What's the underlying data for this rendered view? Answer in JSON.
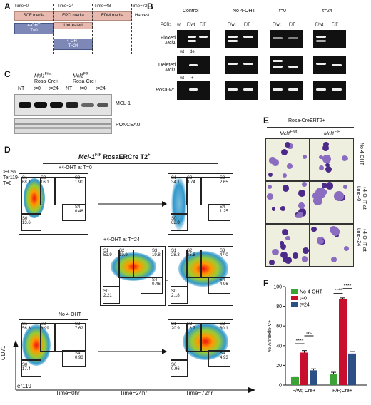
{
  "panels": {
    "a": "A",
    "b": "B",
    "c": "C",
    "d": "D",
    "e": "E",
    "f": "F"
  },
  "timeline": {
    "times": [
      "Time=0",
      "Time=24",
      "Time=48",
      "Time=72"
    ],
    "media": [
      "SCF media",
      "EPO media",
      "EDM media"
    ],
    "harvest": "Harvest",
    "untreated": "Untreated",
    "ohtA": [
      "4-OHT",
      "T=0"
    ],
    "ohtB": [
      "4-OHT",
      "T=24"
    ]
  },
  "gelB": {
    "groups": [
      "Control",
      "No 4-OHT",
      "t=0",
      "t=24"
    ],
    "pcr": "PCR:",
    "lanes": [
      "wt",
      "F/wt",
      "F/F",
      "F/wt",
      "F/F",
      "F/wt",
      "F/F",
      "F/wt",
      "F/F"
    ],
    "rows": [
      [
        "Floxed",
        "Mcl1"
      ],
      [
        "Deleted",
        "Mcl1"
      ],
      [
        "Rosa-wt"
      ]
    ],
    "subDeleted": [
      "wt",
      "del"
    ],
    "subRosa": [
      "wt",
      "+"
    ]
  },
  "blotC": {
    "geno1": [
      "Mcl1",
      "F/wt",
      "Rosa-Cre+"
    ],
    "geno2": [
      "Mcl1",
      "F/F",
      "Rosa-Cre+"
    ],
    "lanes": [
      "NT",
      "t=0",
      "t=24",
      "NT",
      "t=0",
      "t=24"
    ],
    "mcl": "MCL-1",
    "ponceau": "PONCEAU"
  },
  "facsD": {
    "title_pre": "Mcl-1",
    "title_sup": "F/F",
    "title_post": " RosaERCre T2",
    "title_sup2": "+",
    "note": [
      ">90%",
      "Ter119-",
      "T=0"
    ],
    "rowLabels": [
      "+4-OHT at T=0",
      "+4-OHT at T=24",
      "No 4-OHT"
    ],
    "plots": [
      {
        "id": "p1",
        "S0": "13.6",
        "S1": "68.1",
        "S2": "16.1",
        "S3": "1.90",
        "S4": "0.46"
      },
      {
        "id": "p2",
        "S0": "62.8",
        "S1": "34.1",
        "S2": "3.74",
        "S3": "2.65",
        "S4": "1.25"
      },
      {
        "id": "p3",
        "S0": "2.21",
        "S1": "51.9",
        "S2": "19.9",
        "S3": "19.8",
        "S4": "0.46"
      },
      {
        "id": "p4",
        "S0": "2.18",
        "S1": "28.3",
        "S2": "25.8",
        "S3": "47.0",
        "S4": "4.96"
      },
      {
        "id": "p5",
        "S0": "17.4",
        "S1": "56.3",
        "S2": "8.99",
        "S3": "7.62",
        "S4": "0.93"
      },
      {
        "id": "p6",
        "S0": "0.96",
        "S1": "20.9",
        "S2": "18.7",
        "S3": "60.1",
        "S4": "4.93"
      }
    ],
    "xaxis": "Ter119",
    "yaxis": "CD71",
    "times": [
      "Time=0hr",
      "Time=24hr",
      "Time=72hr"
    ]
  },
  "cellsE": {
    "header": "Rosa-CreERT2+",
    "cols": [
      [
        "Mcl1",
        "F/wt"
      ],
      [
        "Mcl1",
        "F/F"
      ]
    ],
    "rows": [
      [
        "No 4-OHT"
      ],
      [
        "+4-OHT at",
        "time=0"
      ],
      [
        "+4-OHT at",
        "time=24"
      ]
    ]
  },
  "chart_data": {
    "type": "bar",
    "categories": [
      "F/wt; Cre+",
      "F/F;Cre+"
    ],
    "series": [
      {
        "name": "No 4-OHT",
        "values": [
          8,
          11
        ],
        "color": "#3aa535"
      },
      {
        "name": "t=0",
        "values": [
          33,
          87
        ],
        "color": "#c8102e"
      },
      {
        "name": "t=24",
        "values": [
          15,
          32
        ],
        "color": "#2c4f85"
      }
    ],
    "errors": [
      [
        1,
        2
      ],
      [
        2,
        1.5
      ],
      [
        1.5,
        2
      ]
    ],
    "ylabel": "% Annexin-V+",
    "ylim": [
      0,
      100
    ],
    "yticks": [
      "0",
      "20",
      "40",
      "60",
      "80",
      "100"
    ],
    "significance": [
      "****",
      "ns",
      "****",
      "****"
    ],
    "legend_position": "top-left"
  }
}
